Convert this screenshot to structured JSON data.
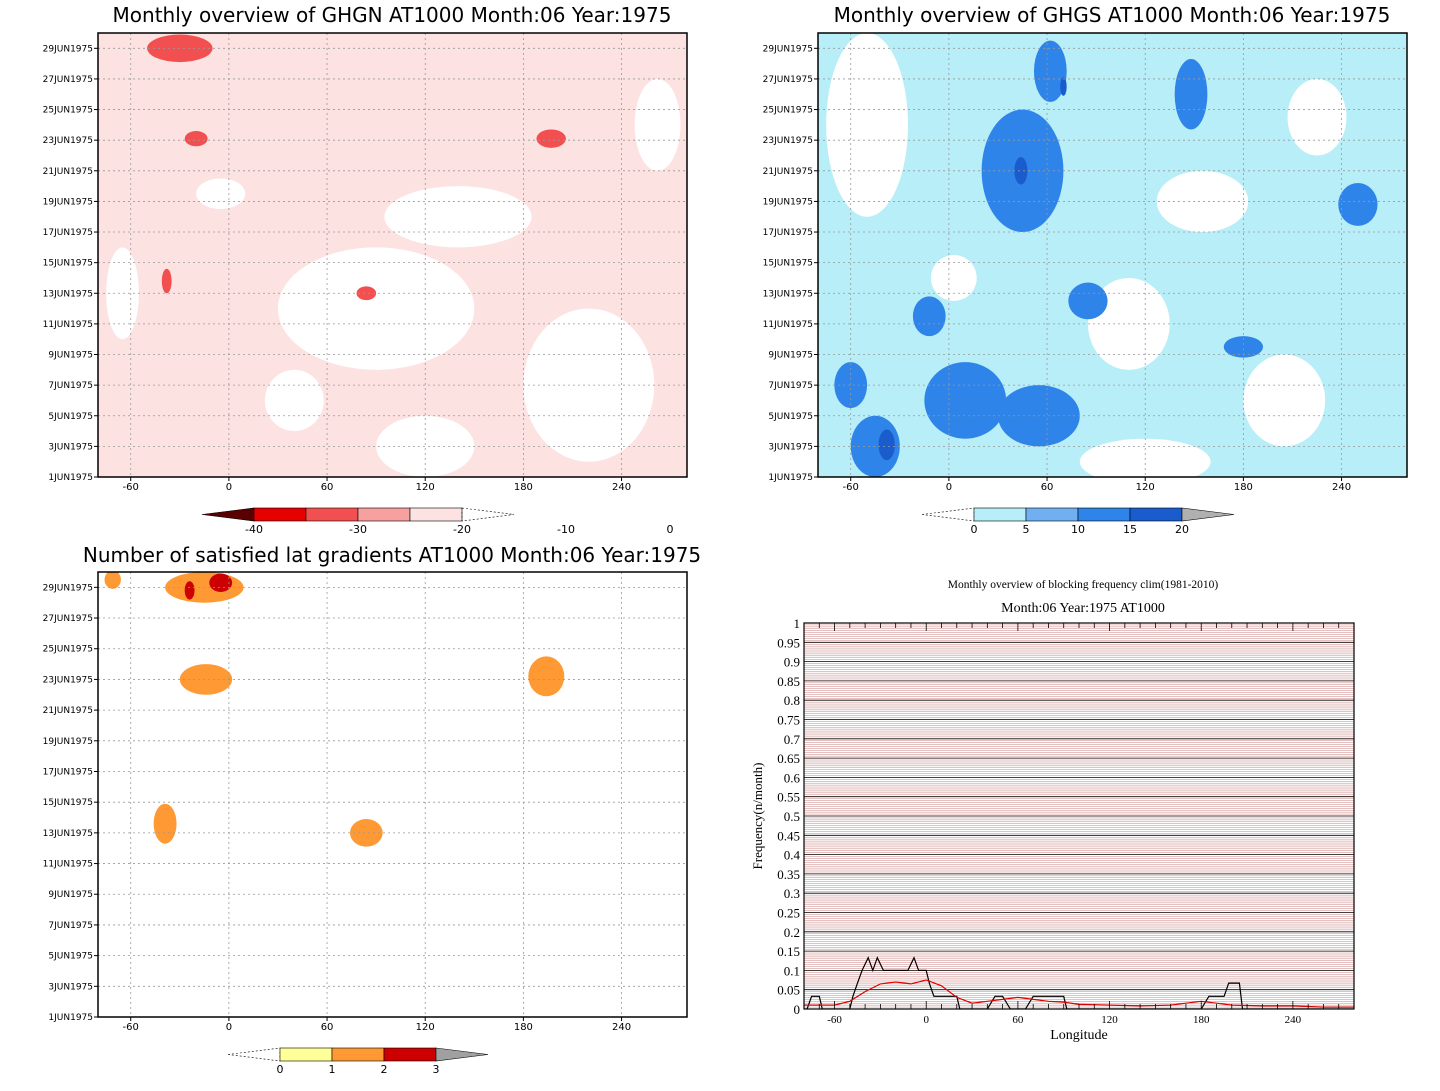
{
  "chart_data": [
    {
      "type": "heatmap",
      "title": "Monthly overview of GHGN AT1000 Month:06 Year:1975",
      "xlabel": "",
      "ylabel": "",
      "xlim": [
        -80,
        280
      ],
      "x_ticks": [
        "-60",
        "0",
        "60",
        "120",
        "180",
        "240"
      ],
      "x_tick_values": [
        -60,
        0,
        60,
        120,
        180,
        240
      ],
      "y_ticks": [
        "1JUN1975",
        "3JUN1975",
        "5JUN1975",
        "7JUN1975",
        "9JUN1975",
        "11JUN1975",
        "13JUN1975",
        "15JUN1975",
        "17JUN1975",
        "19JUN1975",
        "21JUN1975",
        "23JUN1975",
        "25JUN1975",
        "27JUN1975",
        "29JUN1975"
      ],
      "y_tick_values": [
        1,
        3,
        5,
        7,
        9,
        11,
        13,
        15,
        17,
        19,
        21,
        23,
        25,
        27,
        29
      ],
      "ylim": [
        1,
        30
      ],
      "grid": true,
      "colorbar": {
        "labels": [
          "-40",
          "-30",
          "-20",
          "-10",
          "0"
        ],
        "colors": [
          "#5a0000",
          "#e60000",
          "#f25050",
          "#f7a0a0",
          "#fde2e2"
        ],
        "extend": "both",
        "orientation": "horizontal"
      },
      "blobs": [
        {
          "x": -30,
          "y": 29,
          "rx": 20,
          "ry": 0.9,
          "level": 2
        },
        {
          "x": -20,
          "y": 23.1,
          "rx": 7,
          "ry": 0.5,
          "level": 2
        },
        {
          "x": 197,
          "y": 23.1,
          "rx": 9,
          "ry": 0.6,
          "level": 2
        },
        {
          "x": -38,
          "y": 13.8,
          "rx": 3,
          "ry": 0.8,
          "level": 2
        },
        {
          "x": 84,
          "y": 13,
          "rx": 6,
          "ry": 0.45,
          "level": 2
        }
      ],
      "clear_regions": [
        {
          "x": 90,
          "y": 12,
          "rx": 60,
          "ry": 4
        },
        {
          "x": 220,
          "y": 7,
          "rx": 40,
          "ry": 5
        },
        {
          "x": 140,
          "y": 18,
          "rx": 45,
          "ry": 2
        },
        {
          "x": 262,
          "y": 24,
          "rx": 14,
          "ry": 3
        },
        {
          "x": 40,
          "y": 6,
          "rx": 18,
          "ry": 2
        },
        {
          "x": -65,
          "y": 13,
          "rx": 10,
          "ry": 3
        },
        {
          "x": -5,
          "y": 19.5,
          "rx": 15,
          "ry": 1
        },
        {
          "x": 120,
          "y": 3,
          "rx": 30,
          "ry": 2
        }
      ]
    },
    {
      "type": "heatmap",
      "title": "Monthly overview of GHGS AT1000 Month:06 Year:1975",
      "xlabel": "",
      "ylabel": "",
      "xlim": [
        -80,
        280
      ],
      "x_ticks": [
        "-60",
        "0",
        "60",
        "120",
        "180",
        "240"
      ],
      "x_tick_values": [
        -60,
        0,
        60,
        120,
        180,
        240
      ],
      "y_ticks": [
        "1JUN1975",
        "3JUN1975",
        "5JUN1975",
        "7JUN1975",
        "9JUN1975",
        "11JUN1975",
        "13JUN1975",
        "15JUN1975",
        "17JUN1975",
        "19JUN1975",
        "21JUN1975",
        "23JUN1975",
        "25JUN1975",
        "27JUN1975",
        "29JUN1975"
      ],
      "y_tick_values": [
        1,
        3,
        5,
        7,
        9,
        11,
        13,
        15,
        17,
        19,
        21,
        23,
        25,
        27,
        29
      ],
      "ylim": [
        1,
        30
      ],
      "grid": true,
      "colorbar": {
        "labels": [
          "0",
          "5",
          "10",
          "15",
          "20"
        ],
        "colors": [
          "#b8eef8",
          "#70b0f0",
          "#2e84e8",
          "#1a5ccc",
          "#b0b0b0"
        ],
        "extend": "both",
        "orientation": "horizontal"
      },
      "blobs": [
        {
          "x": 45,
          "y": 21,
          "rx": 25,
          "ry": 4,
          "level": 2
        },
        {
          "x": 62,
          "y": 27.5,
          "rx": 10,
          "ry": 2,
          "level": 2
        },
        {
          "x": 148,
          "y": 26,
          "rx": 10,
          "ry": 2.3,
          "level": 2
        },
        {
          "x": 10,
          "y": 6,
          "rx": 25,
          "ry": 2.5,
          "level": 2
        },
        {
          "x": 55,
          "y": 5,
          "rx": 25,
          "ry": 2,
          "level": 2
        },
        {
          "x": -45,
          "y": 3,
          "rx": 15,
          "ry": 2,
          "level": 2
        },
        {
          "x": -60,
          "y": 7,
          "rx": 10,
          "ry": 1.5,
          "level": 2
        },
        {
          "x": 85,
          "y": 12.5,
          "rx": 12,
          "ry": 1.2,
          "level": 2
        },
        {
          "x": 250,
          "y": 18.8,
          "rx": 12,
          "ry": 1.4,
          "level": 2
        },
        {
          "x": 180,
          "y": 9.5,
          "rx": 12,
          "ry": 0.7,
          "level": 2
        },
        {
          "x": -12,
          "y": 11.5,
          "rx": 10,
          "ry": 1.3,
          "level": 2
        },
        {
          "x": 44,
          "y": 21,
          "rx": 4,
          "ry": 0.9,
          "level": 3
        },
        {
          "x": -38,
          "y": 3.1,
          "rx": 5,
          "ry": 1,
          "level": 3
        },
        {
          "x": 70,
          "y": 26.5,
          "rx": 2,
          "ry": 0.6,
          "level": 3
        }
      ],
      "clear_regions": [
        {
          "x": -50,
          "y": 24,
          "rx": 25,
          "ry": 6
        },
        {
          "x": 110,
          "y": 11,
          "rx": 25,
          "ry": 3
        },
        {
          "x": 205,
          "y": 6,
          "rx": 25,
          "ry": 3
        },
        {
          "x": 155,
          "y": 19,
          "rx": 28,
          "ry": 2
        },
        {
          "x": 225,
          "y": 24.5,
          "rx": 18,
          "ry": 2.5
        },
        {
          "x": 3,
          "y": 14,
          "rx": 14,
          "ry": 1.5
        },
        {
          "x": 120,
          "y": 2,
          "rx": 40,
          "ry": 1.5
        }
      ]
    },
    {
      "type": "heatmap",
      "title": "Number of satisfied lat gradients AT1000 Month:06 Year:1975",
      "xlabel": "",
      "ylabel": "",
      "xlim": [
        -80,
        280
      ],
      "x_ticks": [
        "-60",
        "0",
        "60",
        "120",
        "180",
        "240"
      ],
      "x_tick_values": [
        -60,
        0,
        60,
        120,
        180,
        240
      ],
      "y_ticks": [
        "1JUN1975",
        "3JUN1975",
        "5JUN1975",
        "7JUN1975",
        "9JUN1975",
        "11JUN1975",
        "13JUN1975",
        "15JUN1975",
        "17JUN1975",
        "19JUN1975",
        "21JUN1975",
        "23JUN1975",
        "25JUN1975",
        "27JUN1975",
        "29JUN1975"
      ],
      "y_tick_values": [
        1,
        3,
        5,
        7,
        9,
        11,
        13,
        15,
        17,
        19,
        21,
        23,
        25,
        27,
        29
      ],
      "ylim": [
        1,
        30
      ],
      "grid": true,
      "colorbar": {
        "labels": [
          "0",
          "1",
          "2",
          "3"
        ],
        "colors": [
          "#ffff99",
          "#ff9933",
          "#cc0000",
          "#a0a0a0"
        ],
        "extend": "both",
        "orientation": "horizontal"
      },
      "blobs": [
        {
          "x": -71,
          "y": 29.5,
          "rx": 5,
          "ry": 0.6,
          "level": 1
        },
        {
          "x": -15,
          "y": 29,
          "rx": 24,
          "ry": 1.0,
          "level": 1
        },
        {
          "x": -14,
          "y": 23,
          "rx": 16,
          "ry": 1.0,
          "level": 1
        },
        {
          "x": 194,
          "y": 23.2,
          "rx": 11,
          "ry": 1.3,
          "level": 1
        },
        {
          "x": -39,
          "y": 13.6,
          "rx": 7,
          "ry": 1.3,
          "level": 1
        },
        {
          "x": 84,
          "y": 13.0,
          "rx": 10,
          "ry": 0.9,
          "level": 1
        },
        {
          "x": -5,
          "y": 29.3,
          "rx": 7,
          "ry": 0.6,
          "level": 2
        },
        {
          "x": -24,
          "y": 28.8,
          "rx": 3,
          "ry": 0.6,
          "level": 2
        }
      ],
      "clear_regions": []
    },
    {
      "type": "line",
      "title": "Monthly overview of blocking frequency clim(1981-2010)",
      "subtitle": "Month:06 Year:1975  AT1000",
      "xlabel": "Longitude",
      "ylabel": "Frequency(n/month)",
      "xlim": [
        -80,
        280
      ],
      "ylim": [
        0,
        1
      ],
      "x_ticks": [
        "-60",
        "0",
        "60",
        "120",
        "180",
        "240"
      ],
      "x_tick_values": [
        -60,
        0,
        60,
        120,
        180,
        240
      ],
      "y_ticks": [
        "0",
        "0.05",
        "0.1",
        "0.15",
        "0.2",
        "0.25",
        "0.3",
        "0.35",
        "0.4",
        "0.45",
        "0.5",
        "0.55",
        "0.6",
        "0.65",
        "0.7",
        "0.75",
        "0.8",
        "0.85",
        "0.9",
        "0.95",
        "1"
      ],
      "grid": true,
      "series": [
        {
          "color": "#000000",
          "x": [
            -80,
            -78,
            -75,
            -70,
            -68,
            -65,
            -50,
            -48,
            -45,
            -42,
            -38,
            -35,
            -32,
            -28,
            -25,
            -22,
            -18,
            -12,
            -8,
            -5,
            -2,
            0,
            2,
            5,
            20,
            22,
            40,
            45,
            50,
            55,
            60,
            65,
            70,
            72,
            90,
            92,
            180,
            185,
            195,
            198,
            202,
            205,
            207,
            210,
            280
          ],
          "y": [
            0,
            0,
            0.033,
            0.033,
            0,
            0,
            0,
            0.033,
            0.067,
            0.1,
            0.133,
            0.1,
            0.133,
            0.1,
            0.1,
            0.1,
            0.1,
            0.1,
            0.133,
            0.1,
            0.1,
            0.1,
            0.067,
            0.033,
            0.033,
            0,
            0,
            0.033,
            0.033,
            0,
            0,
            0,
            0.033,
            0.033,
            0.033,
            0,
            0,
            0.033,
            0.033,
            0.067,
            0.067,
            0.067,
            0,
            0,
            0
          ]
        },
        {
          "color": "#dd0000",
          "x": [
            -80,
            -70,
            -60,
            -50,
            -40,
            -30,
            -20,
            -10,
            0,
            10,
            20,
            30,
            40,
            50,
            60,
            70,
            80,
            90,
            100,
            120,
            140,
            160,
            170,
            180,
            190,
            200,
            220,
            240,
            260,
            280
          ],
          "y": [
            0.01,
            0.01,
            0.01,
            0.02,
            0.045,
            0.065,
            0.07,
            0.065,
            0.075,
            0.06,
            0.03,
            0.015,
            0.02,
            0.025,
            0.03,
            0.025,
            0.02,
            0.018,
            0.012,
            0.01,
            0.008,
            0.01,
            0.015,
            0.02,
            0.015,
            0.01,
            0.008,
            0.008,
            0.005,
            0.005
          ]
        }
      ]
    }
  ]
}
